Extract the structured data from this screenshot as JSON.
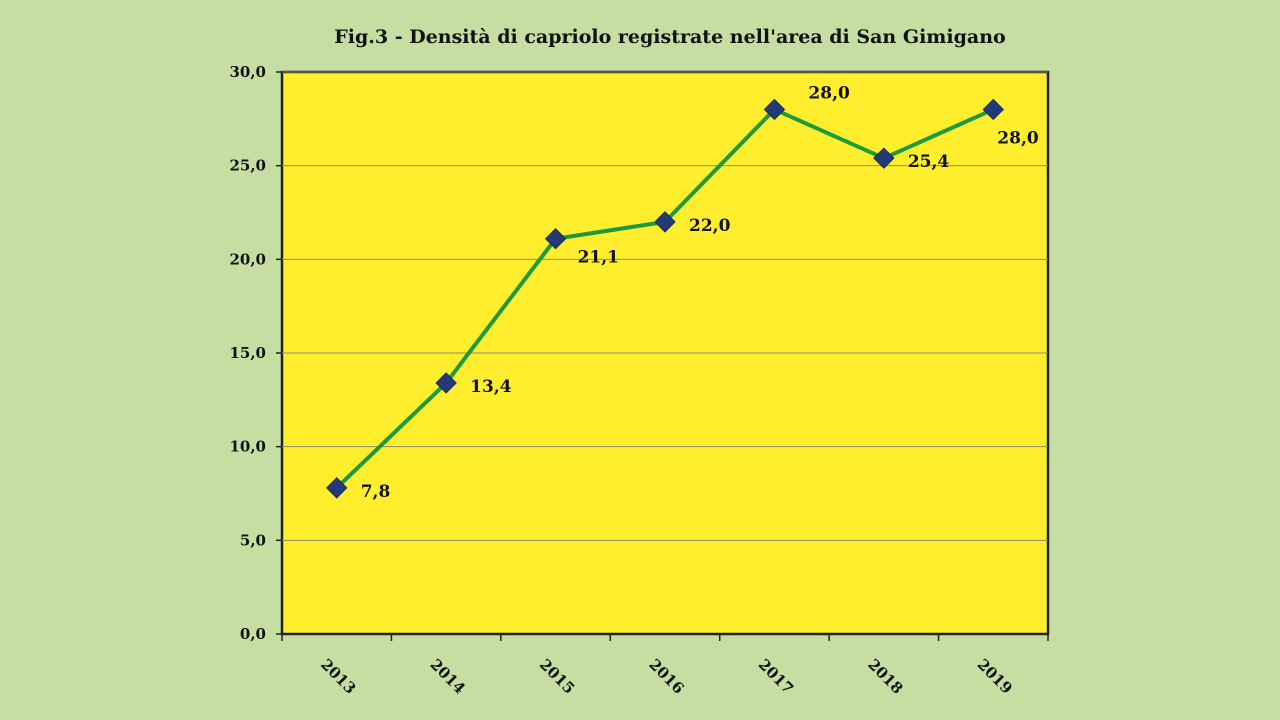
{
  "colors": {
    "background": "#c5dea2",
    "plot_area": "#ffee2e",
    "line": "#1e9a3c",
    "marker": "#243a78",
    "gridline": "#8c8c6e"
  },
  "chart_data": {
    "type": "line",
    "title": "Fig.3 - Densità di capriolo registrate nell'area di San Gimigano",
    "xlabel": "",
    "ylabel": "",
    "categories": [
      "2013",
      "2014",
      "2015",
      "2016",
      "2017",
      "2018",
      "2019"
    ],
    "series": [
      {
        "values": [
          7.8,
          13.4,
          21.1,
          22.0,
          28.0,
          25.4,
          28.0
        ],
        "labels": [
          "7,8",
          "13,4",
          "21,1",
          "22,0",
          "28,0",
          "25,4",
          "28,0"
        ]
      }
    ],
    "ylim": [
      0,
      30
    ],
    "yticks": [
      0,
      5,
      10,
      15,
      20,
      25,
      30
    ],
    "ytick_labels": [
      "0,0",
      "5,0",
      "10,0",
      "15,0",
      "20,0",
      "25,0",
      "30,0"
    ],
    "grid": true,
    "legend": "none",
    "marker": "diamond"
  }
}
